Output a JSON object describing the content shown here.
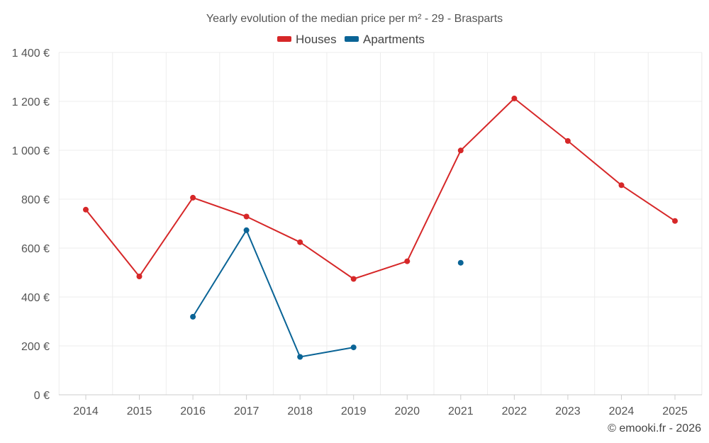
{
  "chart_data": {
    "type": "line",
    "title": "Yearly evolution of the median price per m² - 29 - Brasparts",
    "categories": [
      "2014",
      "2015",
      "2016",
      "2017",
      "2018",
      "2019",
      "2020",
      "2021",
      "2022",
      "2023",
      "2024",
      "2025"
    ],
    "series": [
      {
        "name": "Houses",
        "color": "#d62728",
        "values": [
          757,
          484,
          806,
          729,
          624,
          474,
          546,
          999,
          1212,
          1038,
          857,
          711
        ]
      },
      {
        "name": "Apartments",
        "color": "#0a6496",
        "values": [
          null,
          null,
          319,
          673,
          155,
          194,
          null,
          540,
          null,
          null,
          null,
          null
        ]
      }
    ],
    "y_ticks": [
      "0 €",
      "200 €",
      "400 €",
      "600 €",
      "800 €",
      "1 000 €",
      "1 200 €",
      "1 400 €"
    ],
    "ylim": [
      0,
      1400
    ],
    "xlabel": "",
    "ylabel": "",
    "grid": true,
    "legend_position": "top-center"
  },
  "credit": "© emooki.fr - 2026"
}
